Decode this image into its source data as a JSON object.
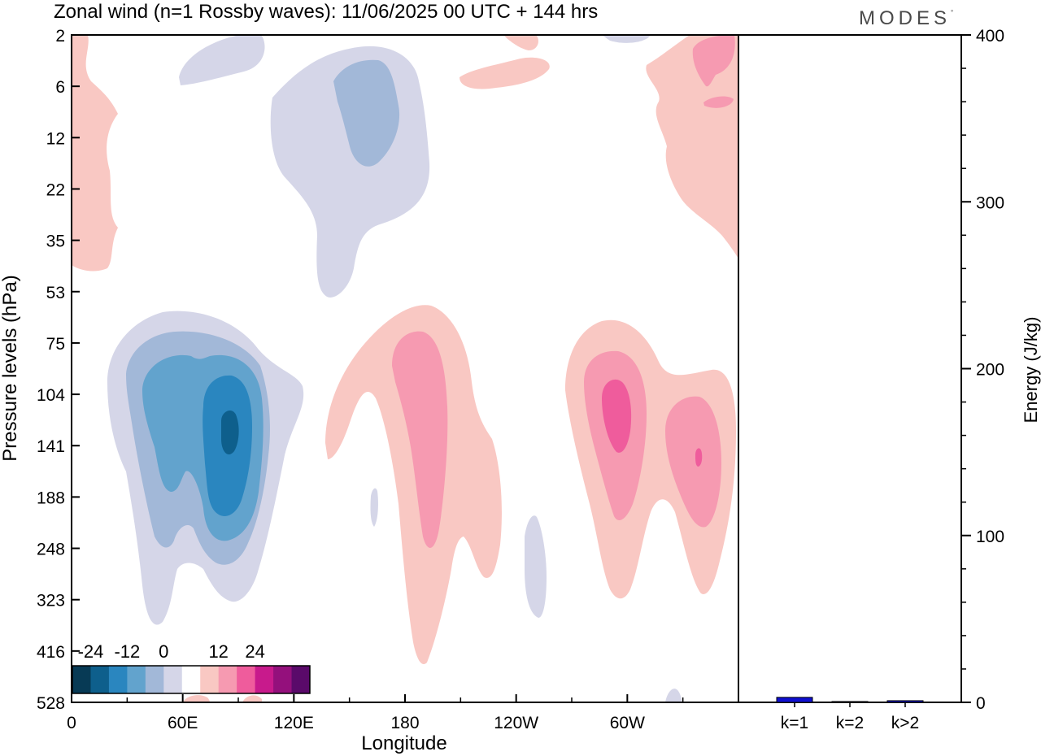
{
  "title": "Zonal wind (n=1 Rossby waves):  11/06/2025  00 UTC  + 144 hrs",
  "brand": {
    "text": "MODES",
    "mark": "°"
  },
  "chart_data": [
    {
      "type": "heatmap",
      "title": "Zonal wind (n=1 Rossby waves):  11/06/2025  00 UTC  + 144 hrs",
      "xlabel": "Longitude",
      "ylabel": "Pressure levels (hPa)",
      "x_ticks": [
        "0",
        "60E",
        "120E",
        "180",
        "120W",
        "60W"
      ],
      "y_ticks": [
        "2",
        "6",
        "12",
        "22",
        "35",
        "53",
        "75",
        "104",
        "141",
        "188",
        "248",
        "323",
        "416",
        "528"
      ],
      "colorbar": {
        "labels": [
          "-24",
          "-12",
          "0",
          "12",
          "24"
        ],
        "colors": [
          "#073a55",
          "#0e5f8c",
          "#2a86bf",
          "#62a3cd",
          "#a2b8d8",
          "#d5d6e8",
          "#ffffff",
          "#f9c8c3",
          "#f69ab1",
          "#ef5c9c",
          "#c81a8c",
          "#94107c",
          "#5a0a6a"
        ],
        "placement": "bottom-left"
      },
      "features": [
        {
          "sign": "negative",
          "peak": -18,
          "lon": 85,
          "hPa": 130
        },
        {
          "sign": "negative",
          "peak": -9,
          "lon": 150,
          "hPa": 9
        },
        {
          "sign": "negative",
          "peak": -3,
          "lon": 105,
          "hPa": 4
        },
        {
          "sign": "positive",
          "peak": 9,
          "lon": 187,
          "hPa": 120
        },
        {
          "sign": "positive",
          "peak": 15,
          "lon": 303,
          "hPa": 115
        },
        {
          "sign": "positive",
          "peak": 15,
          "lon": 345,
          "hPa": 140
        },
        {
          "sign": "positive",
          "peak": 9,
          "lon": 350,
          "hPa": 4
        },
        {
          "sign": "positive",
          "peak": 3,
          "lon": 5,
          "hPa": 15
        }
      ]
    },
    {
      "type": "bar",
      "ylabel": "Energy (J/kg)",
      "categories": [
        "k=1",
        "k=2",
        "k>2"
      ],
      "values": [
        3,
        0.5,
        1
      ],
      "ylim": [
        0,
        400
      ],
      "y_ticks": [
        "0",
        "100",
        "200",
        "300",
        "400"
      ],
      "bar_color": "#1010d0"
    }
  ]
}
